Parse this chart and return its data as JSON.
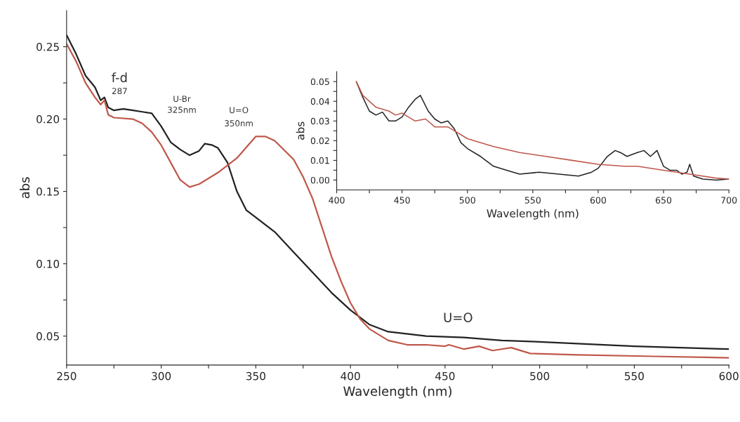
{
  "chart_data": [
    {
      "type": "line",
      "xlabel": "Wavelength (nm)",
      "ylabel": "abs",
      "xlim": [
        250,
        600
      ],
      "ylim": [
        0.03,
        0.275
      ],
      "xticks": [
        250,
        {
          "value": 275,
          "label": null
        },
        300,
        {
          "value": 325,
          "label": null
        },
        350,
        {
          "value": 375,
          "label": null
        },
        400,
        {
          "value": 425,
          "label": null
        },
        450,
        {
          "value": 475,
          "label": null
        },
        500,
        {
          "value": 525,
          "label": null
        },
        550,
        {
          "value": 575,
          "label": null
        },
        600
      ],
      "yticks": [
        {
          "value": 0.05,
          "label": "0.05"
        },
        {
          "value": 0.075,
          "label": null
        },
        {
          "value": 0.1,
          "label": "0.10"
        },
        {
          "value": 0.125,
          "label": null
        },
        {
          "value": 0.15,
          "label": "0.15"
        },
        {
          "value": 0.175,
          "label": null
        },
        {
          "value": 0.2,
          "label": "0.20"
        },
        {
          "value": 0.225,
          "label": null
        },
        {
          "value": 0.25,
          "label": "0.25"
        }
      ],
      "grid": false,
      "legend": false,
      "series": [
        {
          "color": "#222222",
          "x": [
            250,
            255,
            260,
            265,
            268,
            270,
            272,
            275,
            280,
            285,
            290,
            295,
            300,
            305,
            310,
            315,
            320,
            323,
            327,
            330,
            335,
            340,
            345,
            350,
            360,
            370,
            380,
            390,
            400,
            410,
            420,
            440,
            460,
            480,
            500,
            550,
            600
          ],
          "values": [
            0.258,
            0.245,
            0.23,
            0.222,
            0.213,
            0.215,
            0.208,
            0.206,
            0.207,
            0.206,
            0.205,
            0.204,
            0.195,
            0.184,
            0.179,
            0.175,
            0.178,
            0.183,
            0.182,
            0.18,
            0.17,
            0.15,
            0.137,
            0.132,
            0.122,
            0.108,
            0.094,
            0.08,
            0.068,
            0.058,
            0.053,
            0.05,
            0.049,
            0.047,
            0.046,
            0.043,
            0.041
          ]
        },
        {
          "color": "#c0574a",
          "x": [
            250,
            255,
            260,
            265,
            268,
            270,
            272,
            275,
            285,
            290,
            295,
            300,
            305,
            310,
            315,
            320,
            330,
            340,
            350,
            355,
            360,
            370,
            375,
            380,
            385,
            390,
            395,
            400,
            405,
            410,
            420,
            430,
            440,
            450,
            452,
            460,
            468,
            475,
            485,
            495,
            520,
            560,
            600
          ],
          "values": [
            0.252,
            0.24,
            0.225,
            0.215,
            0.21,
            0.213,
            0.203,
            0.201,
            0.2,
            0.197,
            0.191,
            0.182,
            0.17,
            0.158,
            0.153,
            0.155,
            0.163,
            0.173,
            0.188,
            0.188,
            0.185,
            0.172,
            0.16,
            0.145,
            0.125,
            0.105,
            0.088,
            0.073,
            0.062,
            0.055,
            0.047,
            0.044,
            0.044,
            0.043,
            0.044,
            0.041,
            0.043,
            0.04,
            0.042,
            0.038,
            0.037,
            0.036,
            0.035
          ]
        }
      ],
      "annotations": [
        "f-d",
        "287",
        "U-Br",
        "325nm",
        "U=O",
        "350nm",
        "U=O"
      ]
    },
    {
      "type": "line",
      "xlabel": "Wavelength (nm)",
      "ylabel": "abs",
      "xlim": [
        400,
        700
      ],
      "ylim": [
        -0.005,
        0.055
      ],
      "xticks": [
        400,
        {
          "value": 425,
          "label": null
        },
        450,
        {
          "value": 475,
          "label": null
        },
        500,
        {
          "value": 525,
          "label": null
        },
        550,
        {
          "value": 575,
          "label": null
        },
        600,
        {
          "value": 625,
          "label": null
        },
        650,
        {
          "value": 675,
          "label": null
        },
        700
      ],
      "yticks": [
        {
          "value": 0.0,
          "label": "0.00"
        },
        {
          "value": 0.005,
          "label": null
        },
        {
          "value": 0.01,
          "label": "0.01"
        },
        {
          "value": 0.015,
          "label": null
        },
        {
          "value": 0.02,
          "label": "0.02"
        },
        {
          "value": 0.025,
          "label": null
        },
        {
          "value": 0.03,
          "label": "0.03"
        },
        {
          "value": 0.035,
          "label": null
        },
        {
          "value": 0.04,
          "label": "0.04"
        },
        {
          "value": 0.045,
          "label": null
        },
        {
          "value": 0.05,
          "label": "0.05"
        }
      ],
      "grid": false,
      "legend": false,
      "series": [
        {
          "color": "#222222",
          "x": [
            415,
            420,
            425,
            430,
            435,
            440,
            445,
            450,
            455,
            460,
            464,
            470,
            475,
            480,
            485,
            490,
            495,
            500,
            510,
            520,
            530,
            540,
            555,
            570,
            585,
            595,
            600,
            607,
            613,
            617,
            622,
            630,
            635,
            640,
            645,
            650,
            655,
            660,
            664,
            668,
            670,
            673,
            680,
            690,
            700
          ],
          "values": [
            0.05,
            0.042,
            0.035,
            0.033,
            0.0345,
            0.03,
            0.03,
            0.032,
            0.037,
            0.041,
            0.043,
            0.035,
            0.031,
            0.029,
            0.03,
            0.026,
            0.019,
            0.016,
            0.012,
            0.007,
            0.005,
            0.003,
            0.004,
            0.003,
            0.002,
            0.004,
            0.006,
            0.012,
            0.015,
            0.014,
            0.012,
            0.014,
            0.015,
            0.012,
            0.015,
            0.007,
            0.005,
            0.005,
            0.003,
            0.004,
            0.008,
            0.002,
            0.0005,
            0.0,
            0.0005
          ]
        },
        {
          "color": "#c0574a",
          "x": [
            415,
            420,
            430,
            440,
            445,
            450,
            460,
            468,
            475,
            485,
            500,
            520,
            540,
            560,
            580,
            600,
            620,
            630,
            650,
            670,
            690,
            700
          ],
          "values": [
            0.05,
            0.043,
            0.037,
            0.035,
            0.033,
            0.034,
            0.03,
            0.031,
            0.027,
            0.027,
            0.021,
            0.017,
            0.014,
            0.012,
            0.01,
            0.008,
            0.007,
            0.007,
            0.005,
            0.003,
            0.001,
            0.0005
          ]
        }
      ]
    }
  ]
}
